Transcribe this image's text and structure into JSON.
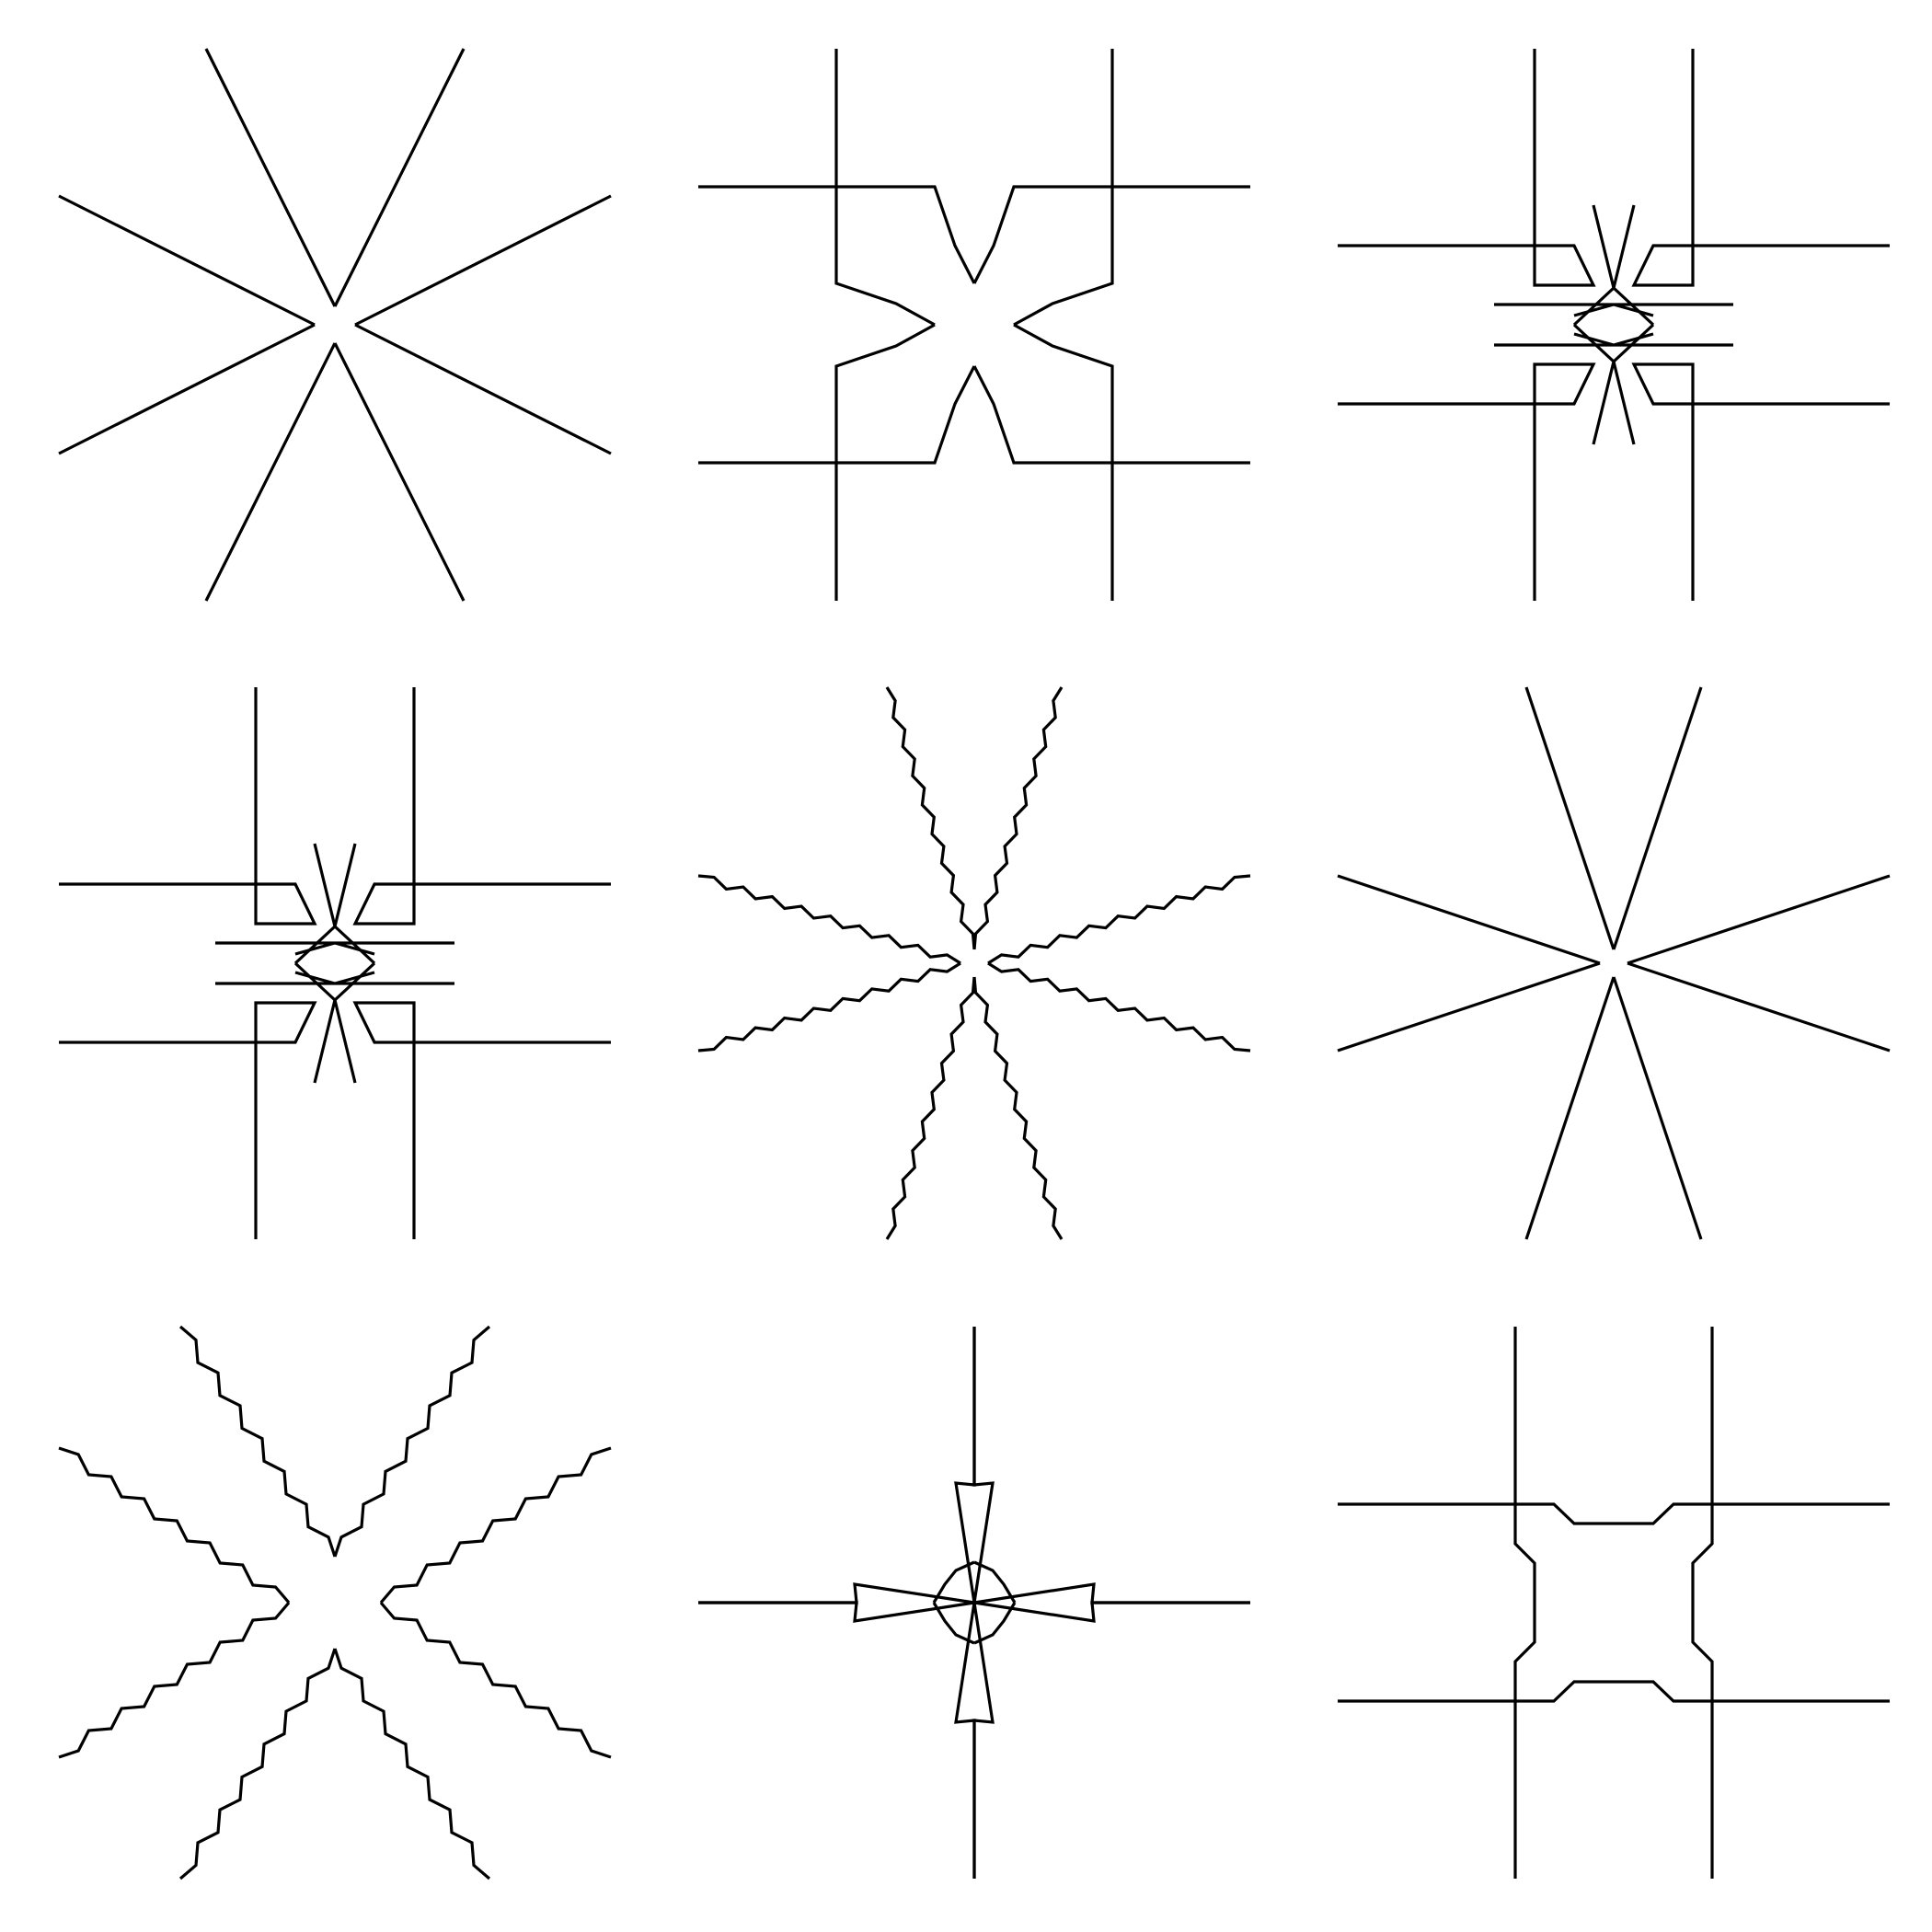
{
  "sheet": {
    "background": "#ffffff",
    "stroke_color": "#000000",
    "grid": {
      "rows": 3,
      "columns": 3
    }
  },
  "tiles": [
    {
      "name": "star-motif-plain-x"
    },
    {
      "name": "square-lattice-motif-pinched"
    },
    {
      "name": "lattice-motif-spiked-center"
    },
    {
      "name": "lattice-motif-spiked-center-variant"
    },
    {
      "name": "star-motif-wavy-arms"
    },
    {
      "name": "star-motif-plain-x-tall"
    },
    {
      "name": "star-motif-zigzag-arms"
    },
    {
      "name": "cross-motif-rosette-center"
    },
    {
      "name": "square-lattice-motif-notched"
    }
  ]
}
